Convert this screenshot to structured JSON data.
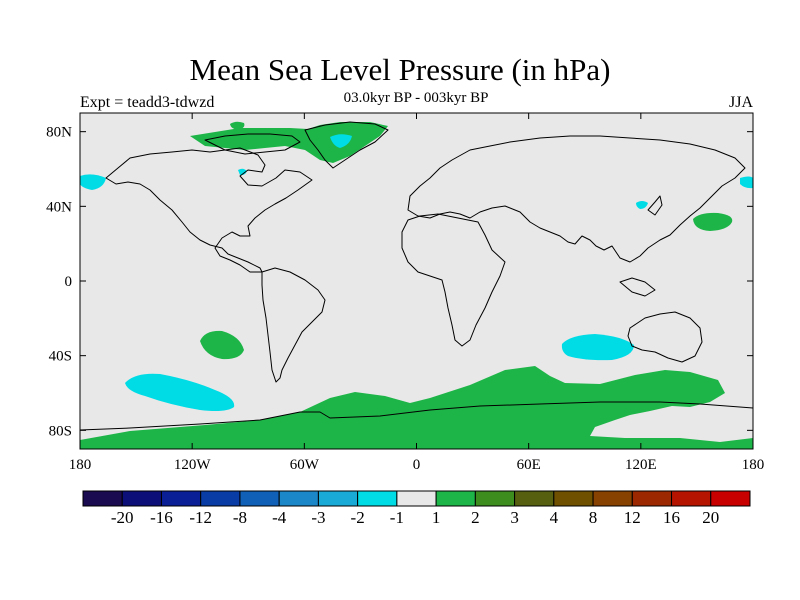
{
  "title": "Mean Sea Level Pressure (in hPa)",
  "subtitle": "03.0kyr BP - 003kyr BP",
  "experiment": "Expt = teadd3-tdwzd",
  "season": "JJA",
  "colors": {
    "ocean_background": "#e8e8e8",
    "coastline": "#000000",
    "positive_anomaly": "#1eb548",
    "negative_anomaly": "#00dce6"
  },
  "map": {
    "lon_range": [
      -180,
      180
    ],
    "lat_range": [
      -90,
      90
    ],
    "x_ticks": [
      {
        "lon": -180,
        "label": "180"
      },
      {
        "lon": -120,
        "label": "120W"
      },
      {
        "lon": -60,
        "label": "60W"
      },
      {
        "lon": 0,
        "label": "0"
      },
      {
        "lon": 60,
        "label": "60E"
      },
      {
        "lon": 120,
        "label": "120E"
      },
      {
        "lon": 180,
        "label": "180"
      }
    ],
    "y_ticks": [
      {
        "lat": 80,
        "label": "80N"
      },
      {
        "lat": 40,
        "label": "40N"
      },
      {
        "lat": 0,
        "label": "0"
      },
      {
        "lat": -40,
        "label": "40S"
      },
      {
        "lat": -80,
        "label": "80S"
      }
    ]
  },
  "colorbar": {
    "colors": [
      "#1a0a50",
      "#0d0f78",
      "#0a1e96",
      "#0a3ca5",
      "#1060b8",
      "#1b86c8",
      "#19aad6",
      "#00dce6",
      "#e8e8e8",
      "#1eb548",
      "#3c8c1e",
      "#555f0f",
      "#6e5000",
      "#874100",
      "#9b2800",
      "#b41400",
      "#c80000"
    ],
    "labels": [
      "-20",
      "-16",
      "-12",
      "-8",
      "-4",
      "-3",
      "-2",
      "-1",
      "1",
      "2",
      "3",
      "4",
      "8",
      "12",
      "16",
      "20"
    ]
  }
}
